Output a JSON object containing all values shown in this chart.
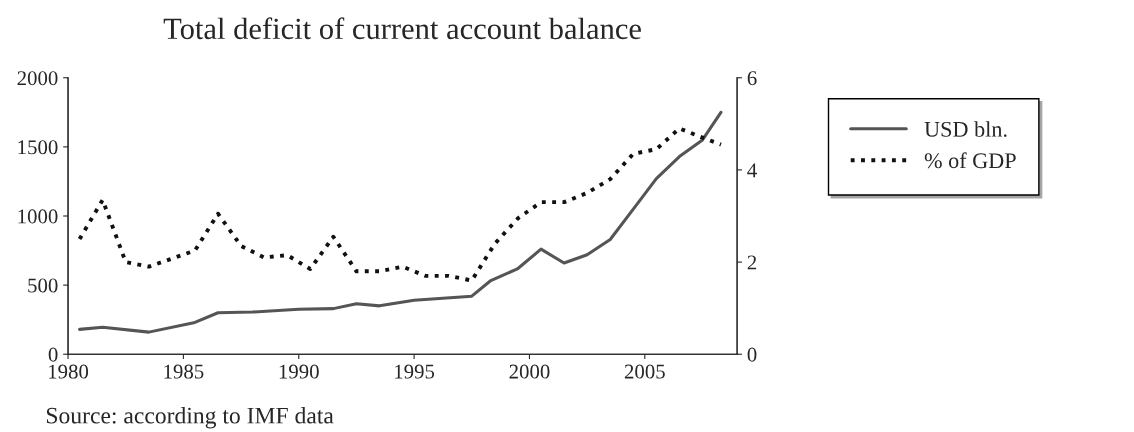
{
  "chart_data": {
    "type": "line",
    "title": "Total deficit of current account balance",
    "annotations": [
      "Source: according to IMF data"
    ],
    "xlim": [
      1980,
      2009
    ],
    "xticks": [
      1980,
      1985,
      1990,
      1995,
      2000,
      2005
    ],
    "ylim": [
      0,
      2000
    ],
    "yticks": [
      0,
      500,
      1000,
      1500,
      2000
    ],
    "y2lim": [
      0,
      6
    ],
    "y2ticks": [
      0,
      2,
      4,
      6
    ],
    "grid": false,
    "legend": "right",
    "marker": "none",
    "series": [
      {
        "name": "USD bln.",
        "color": "#555555",
        "line_style": "solid",
        "x": [
          1980.5,
          1981.5,
          1983.5,
          1985.5,
          1986.5,
          1988,
          1990,
          1991.5,
          1992.5,
          1993.5,
          1995,
          1997.5,
          1998.3,
          1999.5,
          2000.5,
          2001.5,
          2002.5,
          2003.5,
          2004.5,
          2005.5,
          2006.5,
          2007.5,
          2008.3
        ],
        "values": [
          180,
          195,
          160,
          230,
          300,
          305,
          325,
          330,
          365,
          350,
          390,
          420,
          530,
          620,
          760,
          660,
          720,
          830,
          1050,
          1270,
          1430,
          1550,
          1750
        ]
      },
      {
        "name": "% of GDP",
        "color": "#111111",
        "line_style": "dotted",
        "axis": "y2",
        "x": [
          1980.5,
          1981.5,
          1982.5,
          1983.5,
          1985.5,
          1986.5,
          1987.5,
          1988.5,
          1989.5,
          1990.5,
          1991.5,
          1992.5,
          1993.5,
          1994.5,
          1995.5,
          1996.5,
          1997.5,
          1998.5,
          1999.5,
          2000.5,
          2001.5,
          2002.5,
          2003.5,
          2004.5,
          2005.5,
          2006.5,
          2007.5,
          2008.3
        ],
        "values": [
          2.5,
          3.35,
          2.0,
          1.9,
          2.25,
          3.05,
          2.35,
          2.1,
          2.15,
          1.85,
          2.55,
          1.8,
          1.8,
          1.9,
          1.7,
          1.7,
          1.6,
          2.4,
          2.95,
          3.3,
          3.3,
          3.5,
          3.8,
          4.35,
          4.45,
          4.9,
          4.7,
          4.55
        ]
      }
    ]
  }
}
